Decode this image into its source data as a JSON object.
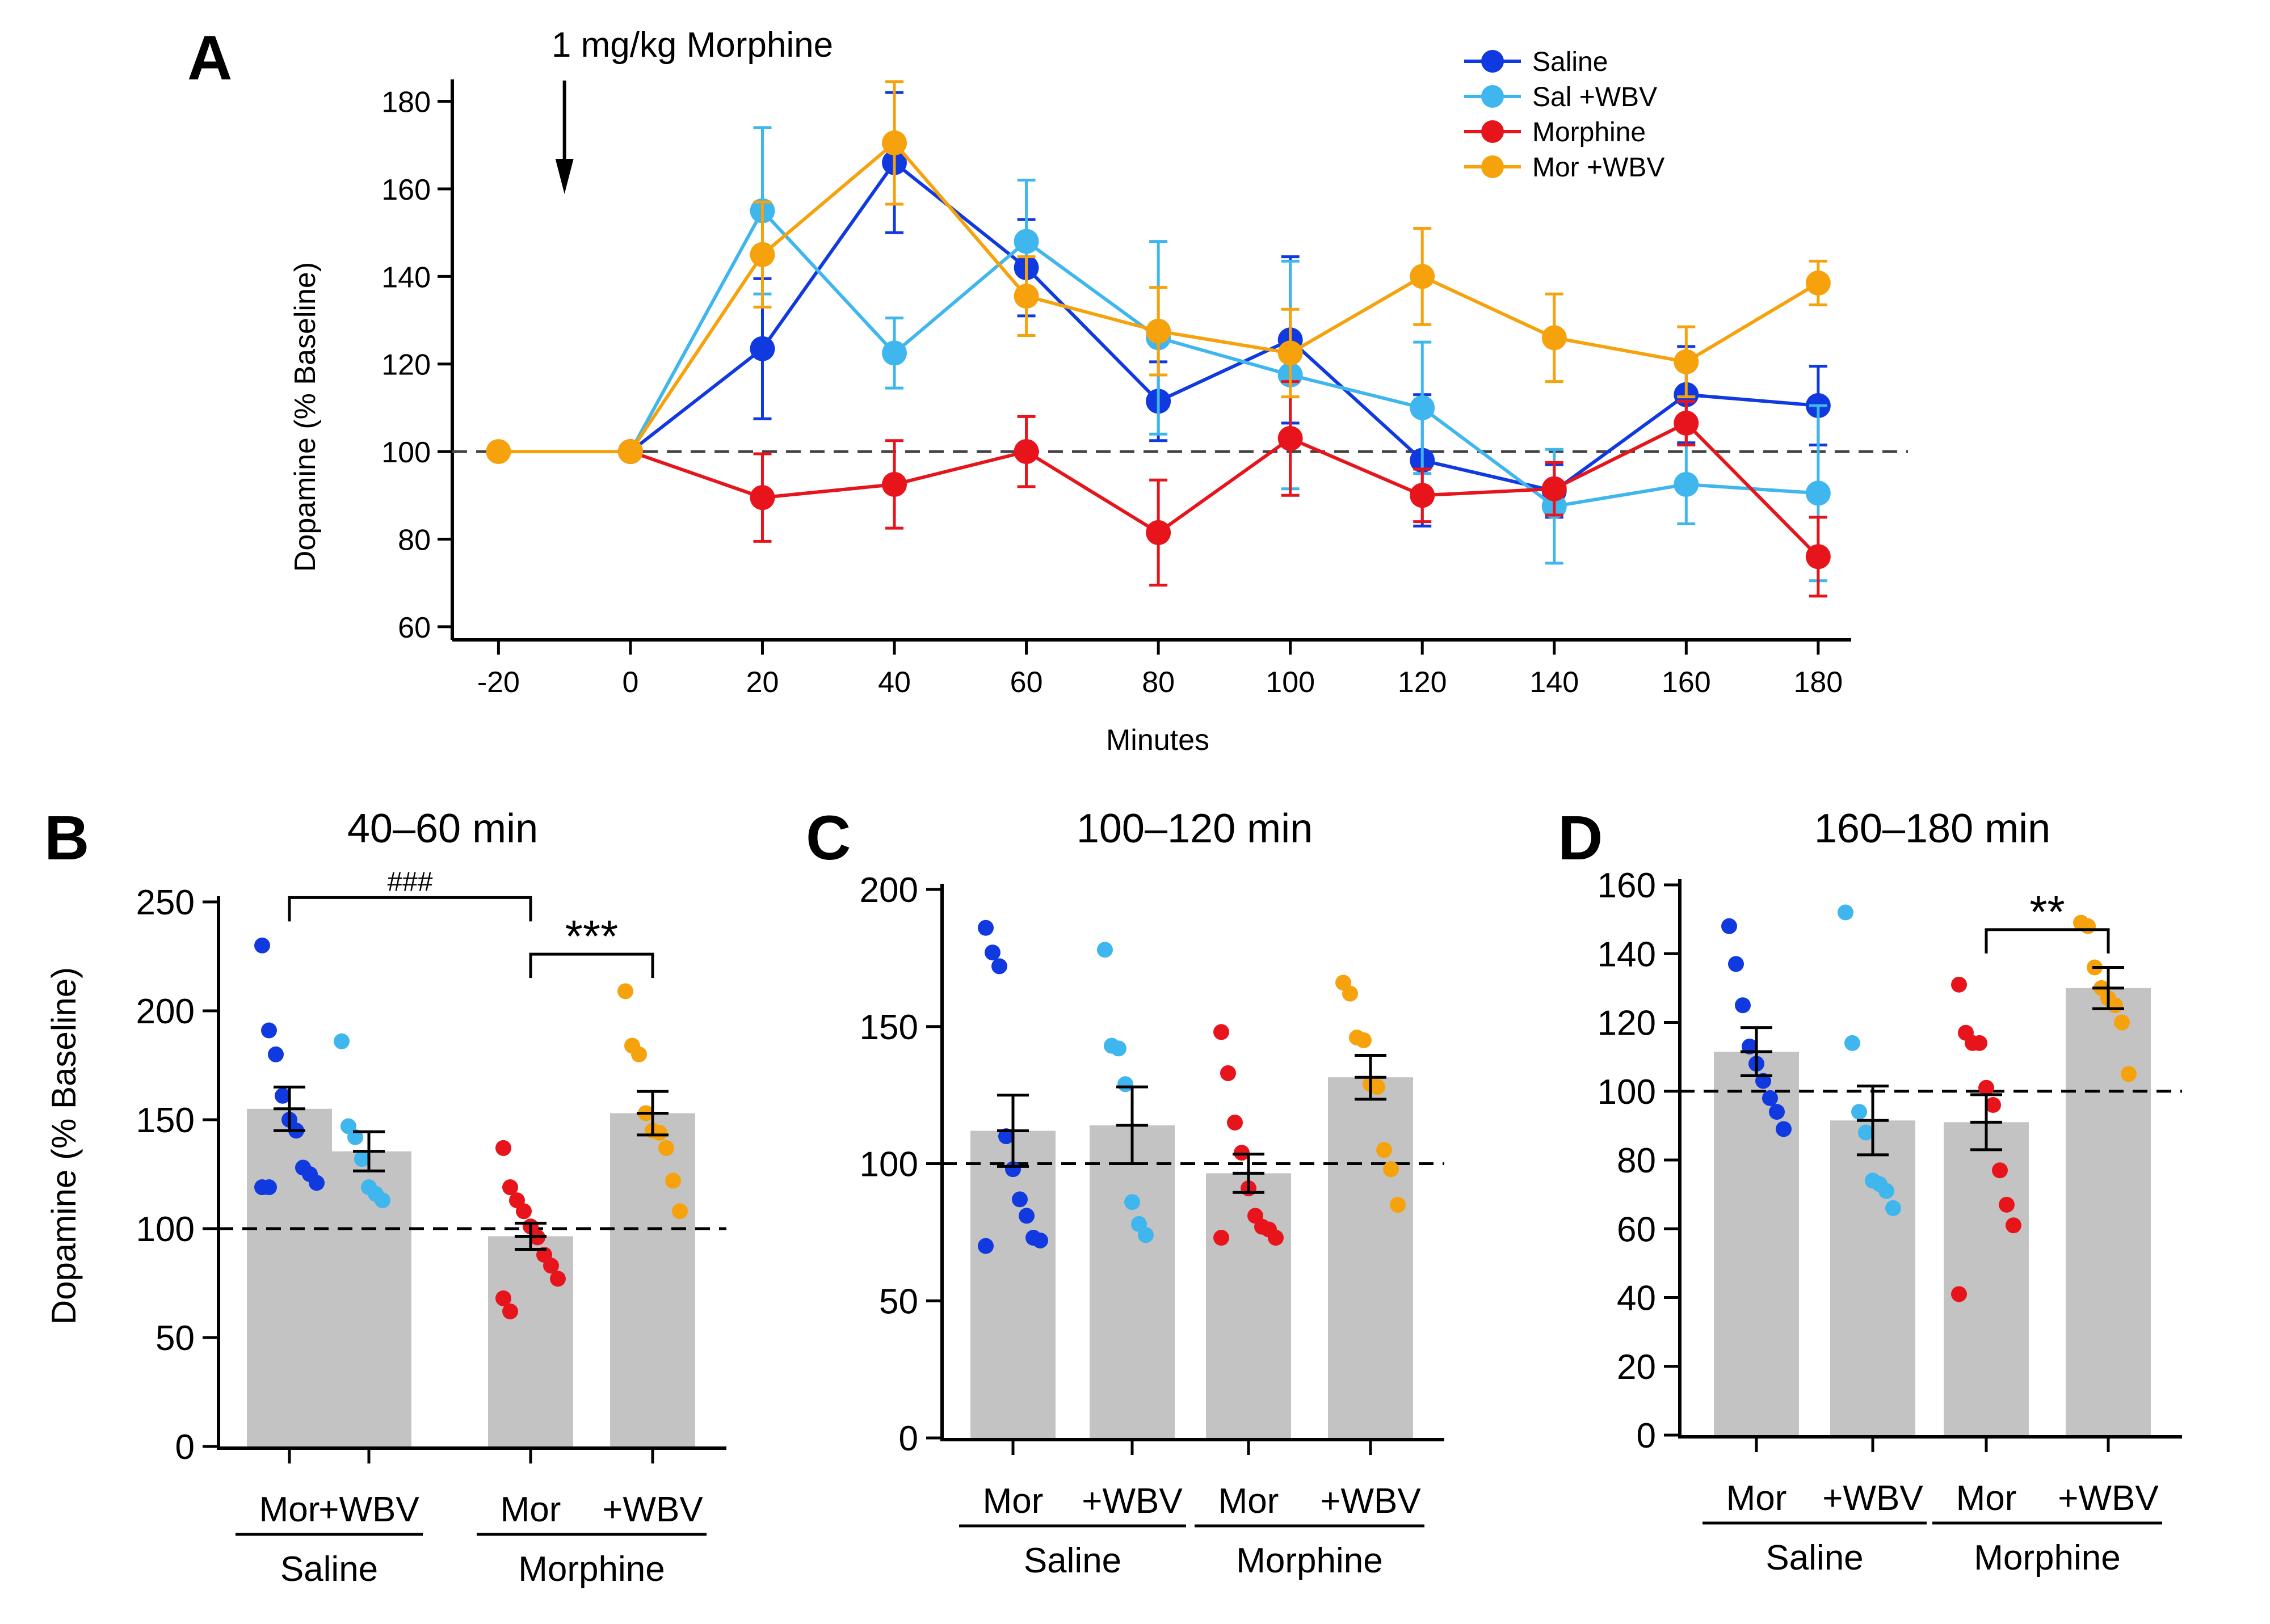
{
  "colors": {
    "saline": "#1039e0",
    "sal_wbv": "#3fb6ee",
    "morphine": "#e8141c",
    "mor_wbv": "#f6a20c",
    "bar": "#c3c3c3",
    "axis": "#000000",
    "baseline": "#444444"
  },
  "chart_data": [
    {
      "panel": "A",
      "type": "line",
      "annotation": "1 mg/kg Morphine",
      "xlabel": "Minutes",
      "ylabel": "Dopamine (% Baseline)",
      "x": [
        -20,
        0,
        20,
        40,
        60,
        80,
        100,
        120,
        140,
        160,
        180
      ],
      "xticks": [
        "-20",
        "0",
        "20",
        "40",
        "60",
        "80",
        "100",
        "120",
        "140",
        "160",
        "180"
      ],
      "xlim": [
        -27,
        185
      ],
      "ylim": [
        57,
        185
      ],
      "yticks": [
        60,
        80,
        100,
        120,
        140,
        160,
        180
      ],
      "baseline": 100,
      "legend_position": "top-right",
      "series": [
        {
          "name": "Saline",
          "color_key": "saline",
          "values": [
            null,
            100,
            123.5,
            166,
            142,
            111.5,
            125.5,
            98,
            91,
            113,
            110.5
          ],
          "errors": [
            0,
            0,
            16,
            16,
            11,
            9,
            19,
            15,
            6,
            11,
            9
          ]
        },
        {
          "name": "Sal +WBV",
          "color_key": "sal_wbv",
          "values": [
            null,
            100,
            155,
            122.5,
            148,
            126,
            117.5,
            110,
            87.5,
            92.5,
            90.5
          ],
          "errors": [
            0,
            0,
            19,
            8,
            14,
            22,
            26,
            15,
            13,
            9,
            20
          ]
        },
        {
          "name": "Morphine",
          "color_key": "morphine",
          "values": [
            null,
            100,
            89.5,
            92.5,
            100,
            81.5,
            103,
            90,
            91.5,
            106.5,
            76
          ],
          "errors": [
            0,
            0,
            10,
            10,
            8,
            12,
            13,
            6,
            6,
            5,
            9
          ]
        },
        {
          "name": "Mor +WBV",
          "color_key": "mor_wbv",
          "values": [
            100,
            100,
            145,
            170.5,
            135.5,
            127.5,
            122.5,
            140,
            126,
            120.5,
            138.5
          ],
          "errors": [
            0,
            0,
            12,
            14,
            9,
            10,
            10,
            11,
            10,
            8,
            5
          ]
        }
      ]
    },
    {
      "panel": "B",
      "type": "bar",
      "title": "40–60 min",
      "ylabel": "Dopamine (% Baseline)",
      "ylim": [
        0,
        250
      ],
      "yticks": [
        0,
        50,
        100,
        150,
        200,
        250
      ],
      "baseline": 100,
      "categories": [
        "Mor",
        "+WBV",
        "Mor",
        "+WBV"
      ],
      "groups": [
        {
          "label": "Saline",
          "from": 0,
          "to": 1
        },
        {
          "label": "Morphine",
          "from": 2,
          "to": 3
        }
      ],
      "color_keys": [
        "saline",
        "sal_wbv",
        "morphine",
        "mor_wbv"
      ],
      "values": [
        155,
        135.5,
        96.5,
        153
      ],
      "errors": [
        10,
        9,
        6,
        10
      ],
      "points": [
        [
          230,
          191,
          180,
          161,
          150,
          145,
          128,
          125,
          121,
          119,
          119
        ],
        [
          186,
          147,
          142,
          132,
          119,
          116,
          113
        ],
        [
          137,
          119,
          113,
          108,
          101,
          96,
          88,
          83,
          77,
          68,
          62
        ],
        [
          209,
          184,
          180,
          153,
          145,
          144,
          137,
          122,
          108
        ]
      ],
      "brackets": [
        {
          "from": 0,
          "to": 2,
          "y": 252,
          "label": "###"
        },
        {
          "from": 2,
          "to": 3,
          "y": 226,
          "label": "***"
        }
      ]
    },
    {
      "panel": "C",
      "type": "bar",
      "title": "100–120 min",
      "ylabel": "",
      "ylim": [
        0,
        200
      ],
      "yticks": [
        0,
        50,
        100,
        150,
        200
      ],
      "baseline": 100,
      "categories": [
        "Mor",
        "+WBV",
        "Mor",
        "+WBV"
      ],
      "groups": [
        {
          "label": "Saline",
          "from": 0,
          "to": 1
        },
        {
          "label": "Morphine",
          "from": 2,
          "to": 3
        }
      ],
      "color_keys": [
        "saline",
        "sal_wbv",
        "morphine",
        "mor_wbv"
      ],
      "values": [
        112,
        114,
        96.5,
        131.5
      ],
      "errors": [
        13,
        14,
        7,
        8
      ],
      "points": [
        [
          186,
          177,
          172,
          110,
          98,
          87,
          81,
          73,
          72,
          70
        ],
        [
          178,
          143,
          142,
          129,
          86,
          78,
          74
        ],
        [
          148,
          133,
          115,
          104,
          91,
          81,
          77,
          76,
          73,
          73
        ],
        [
          166,
          162,
          146,
          145,
          129,
          128,
          105,
          98,
          85
        ]
      ],
      "brackets": []
    },
    {
      "panel": "D",
      "type": "bar",
      "title": "160–180 min",
      "ylabel": "",
      "ylim": [
        0,
        160
      ],
      "yticks": [
        0,
        20,
        40,
        60,
        80,
        100,
        120,
        140,
        160
      ],
      "baseline": 100,
      "categories": [
        "Mor",
        "+WBV",
        "Mor",
        "+WBV"
      ],
      "groups": [
        {
          "label": "Saline",
          "from": 0,
          "to": 1
        },
        {
          "label": "Morphine",
          "from": 2,
          "to": 3
        }
      ],
      "color_keys": [
        "saline",
        "sal_wbv",
        "morphine",
        "mor_wbv"
      ],
      "values": [
        111.5,
        91.5,
        91,
        130
      ],
      "errors": [
        7,
        10,
        8,
        6
      ],
      "points": [
        [
          148,
          137,
          125,
          113,
          108,
          103,
          98,
          94,
          89
        ],
        [
          152,
          114,
          94,
          88,
          74,
          73,
          71,
          66
        ],
        [
          131,
          117,
          114,
          114,
          101,
          96,
          77,
          67,
          61,
          41
        ],
        [
          149,
          148,
          136,
          130,
          127,
          125,
          120,
          105
        ]
      ],
      "brackets": [
        {
          "from": 2,
          "to": 3,
          "y": 147,
          "label": "**"
        }
      ]
    }
  ],
  "panel_labels": {
    "a": "A",
    "b": "B",
    "c": "C",
    "d": "D"
  }
}
